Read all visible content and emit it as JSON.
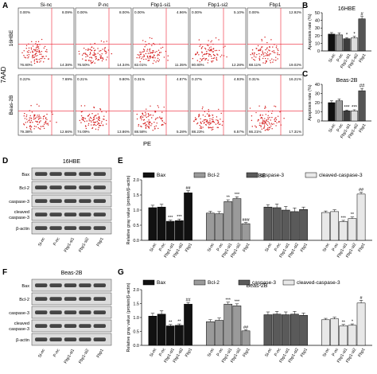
{
  "panels": {
    "A": {
      "letter": "A",
      "columns": [
        "Si-nc",
        "P-nc",
        "Fbp1-si1",
        "Fbp1-si2",
        "Fbp1"
      ],
      "rows": [
        "16HBE",
        "Beas-2B"
      ],
      "yaxis": "7AAD",
      "xaxis": "PE",
      "quadrants": [
        [
          {
            "ul": "0.00%",
            "ur": "8.09%",
            "ll": "76.80%",
            "lr": "14.38%"
          },
          {
            "ul": "0.00%",
            "ur": "8.00%",
            "ll": "76.50%",
            "lr": "14.34%"
          },
          {
            "ul": "0.00%",
            "ur": "4.96%",
            "ll": "82.01%",
            "lr": "11.35%"
          },
          {
            "ul": "0.00%",
            "ur": "5.10%",
            "ll": "80.80%",
            "lr": "12.28%"
          },
          {
            "ul": "0.00%",
            "ur": "12.92%",
            "ll": "68.11%",
            "lr": "19.02%"
          }
        ],
        [
          {
            "ul": "0.22%",
            "ur": "7.69%",
            "ll": "79.38%",
            "lr": "12.66%"
          },
          {
            "ul": "0.21%",
            "ur": "9.80%",
            "ll": "74.09%",
            "lr": "13.86%"
          },
          {
            "ul": "0.31%",
            "ur": "4.87%",
            "ll": "88.58%",
            "lr": "5.28%"
          },
          {
            "ul": "0.37%",
            "ur": "4.93%",
            "ll": "88.23%",
            "lr": "6.57%"
          },
          {
            "ul": "0.31%",
            "ur": "16.21%",
            "ll": "66.21%",
            "lr": "17.31%"
          }
        ]
      ]
    },
    "B": {
      "letter": "B",
      "title": "16HBE"
    },
    "C": {
      "letter": "C",
      "title": "Beas-2B"
    },
    "D": {
      "letter": "D",
      "title": "16HBE",
      "bands": [
        "Bax",
        "Bcl-2",
        "caspase-3",
        "cleaved caspase-3",
        "β-actin"
      ],
      "lanes": [
        "Si-nc",
        "P-nc",
        "Fbp1-si1",
        "Fbp1-si2",
        "Fbp1"
      ]
    },
    "E": {
      "letter": "E",
      "title": "16HBE"
    },
    "F": {
      "letter": "F",
      "title": "Beas-2B",
      "bands": [
        "Bax",
        "Bcl-2",
        "caspase-3",
        "cleaved caspase-3",
        "β-actin"
      ],
      "lanes": [
        "Si-nc",
        "P-nc",
        "Fbp1-si1",
        "Fbp1-si2",
        "Fbp1"
      ]
    },
    "G": {
      "letter": "G",
      "title": "Beas-2B"
    }
  },
  "chart_data": [
    {
      "id": "B",
      "type": "bar",
      "title": "16HBE",
      "ylabel": "Apoptosis rate (%)",
      "ylim": [
        0,
        50
      ],
      "yticks": [
        0,
        10,
        20,
        30,
        40,
        50
      ],
      "categories": [
        "Si-nc",
        "P-nc",
        "Fbp1-si1",
        "Fbp1-si2",
        "Fbp1"
      ],
      "values": [
        22,
        21,
        16,
        17,
        42
      ],
      "errors": [
        2,
        2.5,
        1.5,
        2,
        3
      ],
      "annotations": [
        "",
        "",
        "*",
        "*",
        "#"
      ],
      "colors": [
        "#111111",
        "#9a9a9a",
        "#3c3c3c",
        "#dcdcdc",
        "#555555"
      ]
    },
    {
      "id": "C",
      "type": "bar",
      "title": "Beas-2B",
      "ylabel": "Apoptosis rate (%)",
      "ylim": [
        0,
        40
      ],
      "yticks": [
        0,
        10,
        20,
        30,
        40
      ],
      "categories": [
        "Si-nc",
        "P-nc",
        "Fbp1-si1",
        "Fbp1-si2",
        "Fbp1"
      ],
      "values": [
        20,
        22,
        11,
        11,
        33
      ],
      "errors": [
        2,
        2,
        1,
        1.2,
        2.5
      ],
      "annotations": [
        "",
        "",
        "***",
        "***",
        "##"
      ],
      "colors": [
        "#111111",
        "#9a9a9a",
        "#3c3c3c",
        "#dcdcdc",
        "#555555"
      ]
    },
    {
      "id": "E",
      "type": "bar",
      "title": "16HBE",
      "ylabel": "Relative gray value (protein/β-actin)",
      "ylim": [
        0,
        2.0
      ],
      "yticks": [
        0.0,
        0.5,
        1.0,
        1.5,
        2.0
      ],
      "categories": [
        "Si-nc",
        "P-nc",
        "Fbp1-si1",
        "Fbp1-si2",
        "Fbp1"
      ],
      "series": [
        {
          "name": "Bax",
          "color": "#111111",
          "values": [
            1.08,
            1.1,
            0.63,
            0.65,
            1.57
          ],
          "errors": [
            0.08,
            0.09,
            0.04,
            0.05,
            0.07
          ],
          "annotations": [
            "",
            "",
            "***",
            "***",
            "##"
          ]
        },
        {
          "name": "Bcl-2",
          "color": "#9a9a9a",
          "values": [
            0.9,
            0.88,
            1.28,
            1.38,
            0.55
          ],
          "errors": [
            0.06,
            0.07,
            0.06,
            0.06,
            0.04
          ],
          "annotations": [
            "",
            "",
            "**",
            "***",
            "###"
          ]
        },
        {
          "name": "caspase-3",
          "color": "#5a5a5a",
          "values": [
            1.1,
            1.08,
            1.0,
            0.95,
            1.02
          ],
          "errors": [
            0.08,
            0.12,
            0.12,
            0.12,
            0.08
          ],
          "annotations": [
            "",
            "",
            "",
            "",
            ""
          ]
        },
        {
          "name": "cleaved-caspase-3",
          "color": "#e8e8e8",
          "values": [
            0.92,
            0.95,
            0.62,
            0.72,
            1.53
          ],
          "errors": [
            0.05,
            0.06,
            0.04,
            0.05,
            0.06
          ],
          "annotations": [
            "",
            "",
            "***",
            "**",
            "##"
          ]
        }
      ]
    },
    {
      "id": "G",
      "type": "bar",
      "title": "Beas-2B",
      "ylabel": "Relative gray value (protein/β-actin)",
      "ylim": [
        0,
        2.0
      ],
      "yticks": [
        0.0,
        0.5,
        1.0,
        1.5,
        2.0
      ],
      "categories": [
        "Si-nc",
        "P-nc",
        "Fbp1-si1",
        "Fbp1-si2",
        "Fbp1"
      ],
      "series": [
        {
          "name": "Bax",
          "color": "#111111",
          "values": [
            1.05,
            1.12,
            0.7,
            0.72,
            1.48
          ],
          "errors": [
            0.1,
            0.12,
            0.05,
            0.05,
            0.06
          ],
          "annotations": [
            "",
            "",
            "**",
            "**",
            "##"
          ]
        },
        {
          "name": "Bcl-2",
          "color": "#9a9a9a",
          "values": [
            0.85,
            0.9,
            1.48,
            1.42,
            0.52
          ],
          "errors": [
            0.07,
            0.08,
            0.07,
            0.07,
            0.04
          ],
          "annotations": [
            "",
            "",
            "***",
            "***",
            "##"
          ]
        },
        {
          "name": "caspase-3",
          "color": "#5a5a5a",
          "values": [
            1.1,
            1.12,
            1.1,
            1.12,
            1.08
          ],
          "errors": [
            0.1,
            0.1,
            0.1,
            0.1,
            0.08
          ],
          "annotations": [
            "",
            "",
            "",
            "",
            ""
          ]
        },
        {
          "name": "cleaved-caspase-3",
          "color": "#e8e8e8",
          "values": [
            0.92,
            0.95,
            0.7,
            0.72,
            1.52
          ],
          "errors": [
            0.05,
            0.06,
            0.05,
            0.05,
            0.1
          ],
          "annotations": [
            "",
            "",
            "**",
            "*",
            "#"
          ]
        }
      ]
    }
  ]
}
